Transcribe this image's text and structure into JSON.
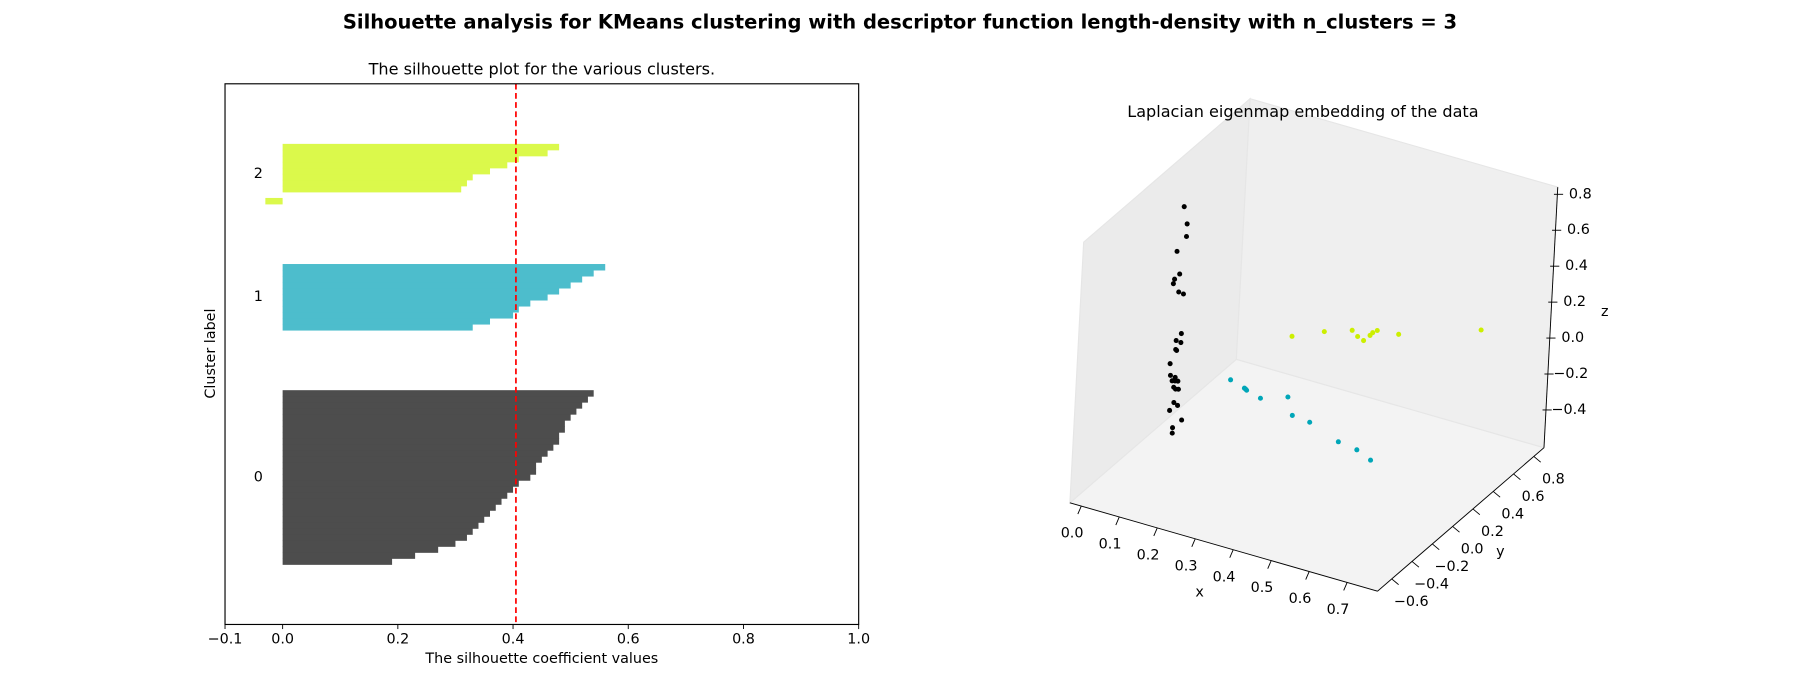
{
  "title": "Silhouette analysis for KMeans clustering with descriptor function length-density with n_clusters = 3",
  "chart_data": [
    {
      "type": "silhouette",
      "title": "The silhouette plot for the various clusters.",
      "xlabel": "The silhouette coefficient values",
      "ylabel": "Cluster label",
      "xlim": [
        -0.1,
        1.0
      ],
      "xticks": [
        {
          "value": -0.1,
          "label": "−0.1"
        },
        {
          "value": 0,
          "label": "0.0"
        },
        {
          "value": 0.2,
          "label": "0.2"
        },
        {
          "value": 0.4,
          "label": "0.4"
        },
        {
          "value": 0.6,
          "label": "0.6"
        },
        {
          "value": 0.8,
          "label": "0.8"
        },
        {
          "value": 1,
          "label": "1.0"
        }
      ],
      "ylim": [
        0,
        90
      ],
      "average_score": 0.405,
      "average_color": "#ff0000",
      "series": [
        {
          "name": "0",
          "color": "#4d4d4d",
          "values": [
            0.19,
            0.23,
            0.27,
            0.3,
            0.32,
            0.33,
            0.34,
            0.35,
            0.36,
            0.37,
            0.38,
            0.39,
            0.4,
            0.41,
            0.43,
            0.44,
            0.44,
            0.45,
            0.46,
            0.47,
            0.48,
            0.48,
            0.49,
            0.49,
            0.5,
            0.51,
            0.52,
            0.53,
            0.54
          ]
        },
        {
          "name": "1",
          "color": "#4dbdcc",
          "values": [
            0.33,
            0.36,
            0.4,
            0.41,
            0.43,
            0.46,
            0.48,
            0.5,
            0.52,
            0.54,
            0.56
          ]
        },
        {
          "name": "2",
          "color": "#dbf94b",
          "values": [
            -0.03,
            0.0,
            0.31,
            0.32,
            0.33,
            0.36,
            0.39,
            0.41,
            0.46,
            0.48
          ]
        }
      ]
    },
    {
      "type": "scatter3d",
      "title": "Laplacian eigenmap embedding of the data",
      "xlabel": "x",
      "ylabel": "y",
      "zlabel": "z",
      "xlim": [
        -0.03,
        0.78
      ],
      "ylim": [
        -0.74,
        0.9
      ],
      "zlim": [
        -0.61,
        0.84
      ],
      "xticks": [
        {
          "value": 0,
          "label": "0.0"
        },
        {
          "value": 0.1,
          "label": "0.1"
        },
        {
          "value": 0.2,
          "label": "0.2"
        },
        {
          "value": 0.3,
          "label": "0.3"
        },
        {
          "value": 0.4,
          "label": "0.4"
        },
        {
          "value": 0.5,
          "label": "0.5"
        },
        {
          "value": 0.6,
          "label": "0.6"
        },
        {
          "value": 0.7,
          "label": "0.7"
        }
      ],
      "yticks": [
        {
          "value": -0.6,
          "label": "−0.6"
        },
        {
          "value": -0.4,
          "label": "−0.4"
        },
        {
          "value": -0.2,
          "label": "−0.2"
        },
        {
          "value": 0,
          "label": "0.0"
        },
        {
          "value": 0.2,
          "label": "0.2"
        },
        {
          "value": 0.4,
          "label": "0.4"
        },
        {
          "value": 0.6,
          "label": "0.6"
        },
        {
          "value": 0.8,
          "label": "0.8"
        }
      ],
      "zticks": [
        {
          "value": -0.4,
          "label": "−0.4"
        },
        {
          "value": -0.2,
          "label": "−0.2"
        },
        {
          "value": 0,
          "label": "0.0"
        },
        {
          "value": 0.2,
          "label": "0.2"
        },
        {
          "value": 0.4,
          "label": "0.4"
        },
        {
          "value": 0.6,
          "label": "0.6"
        },
        {
          "value": 0.8,
          "label": "0.8"
        }
      ],
      "series": [
        {
          "color": "#000000",
          "x": [
            0.04,
            0.05,
            0.05,
            0.03,
            0.04,
            0.03,
            0.03,
            0.04,
            0.05,
            0.05,
            0.04,
            0.05,
            0.04,
            0.04,
            0.03,
            0.03,
            0.04,
            0.05,
            0.04,
            0.03,
            0.04,
            0.05,
            0.04,
            0.04,
            0.05,
            0.03,
            0.06,
            0.04,
            0.04
          ],
          "y": [
            0.0,
            0.0,
            0.0,
            -0.01,
            -0.01,
            -0.02,
            -0.03,
            -0.01,
            0.0,
            0.0,
            -0.01,
            0.0,
            -0.01,
            0.0,
            -0.02,
            -0.01,
            0.0,
            -0.01,
            0.0,
            0.01,
            -0.01,
            0.0,
            0.01,
            0.0,
            0.0,
            0.0,
            0.01,
            0.0,
            0.0
          ],
          "z": [
            0.72,
            0.63,
            0.56,
            0.47,
            0.35,
            0.32,
            0.3,
            0.25,
            0.24,
            0.02,
            -0.02,
            -0.03,
            -0.07,
            -0.08,
            -0.15,
            -0.22,
            -0.23,
            -0.24,
            -0.25,
            -0.26,
            -0.28,
            -0.29,
            -0.3,
            -0.37,
            -0.38,
            -0.42,
            -0.46,
            -0.51,
            -0.54
          ]
        },
        {
          "color": "#00a6b8",
          "x": [
            0.184,
            0.221,
            0.224,
            0.227,
            0.264,
            0.335,
            0.349,
            0.395,
            0.472,
            0.521,
            0.558
          ],
          "y": [
            0,
            0,
            0,
            0,
            0,
            0,
            0,
            0,
            0,
            0,
            0
          ],
          "z": [
            -0.156,
            -0.18,
            -0.183,
            -0.188,
            -0.21,
            -0.16,
            -0.254,
            -0.264,
            -0.326,
            -0.341,
            -0.376
          ]
        },
        {
          "color": "#ccef00",
          "x": [
            0.267,
            0.32,
            0.372,
            0.397,
            0.418,
            0.418,
            0.419,
            0.422,
            0.473,
            0.626
          ],
          "y": [
            0.28,
            0.4,
            0.48,
            0.44,
            0.42,
            0.51,
            0.48,
            0.54,
            0.56,
            0.8
          ],
          "z": [
            0,
            0,
            0,
            0,
            0,
            0,
            0,
            0,
            0,
            0
          ]
        }
      ]
    }
  ]
}
